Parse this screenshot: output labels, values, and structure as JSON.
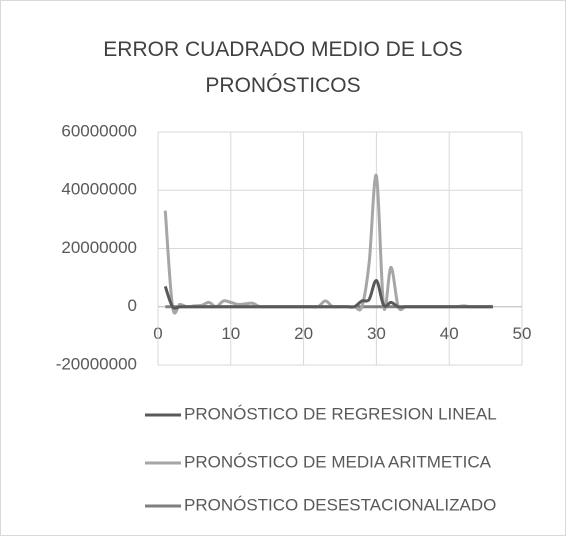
{
  "chart_data": {
    "type": "line",
    "title": "ERROR CUADRADO MEDIO DE LOS PRONÓSTICOS",
    "x": [
      1,
      2,
      3,
      4,
      5,
      6,
      7,
      8,
      9,
      10,
      11,
      12,
      13,
      14,
      15,
      16,
      17,
      18,
      19,
      20,
      21,
      22,
      23,
      24,
      25,
      26,
      27,
      28,
      29,
      30,
      31,
      32,
      33,
      34,
      35,
      36,
      37,
      38,
      39,
      40,
      41,
      42,
      43,
      44,
      45,
      46
    ],
    "series": [
      {
        "name": "PRONÓSTICO DE REGRESION LINEAL",
        "color": "#595959",
        "values": [
          7000000,
          0,
          0,
          0,
          0,
          0,
          0,
          0,
          0,
          0,
          0,
          0,
          0,
          0,
          0,
          0,
          0,
          0,
          0,
          0,
          0,
          0,
          0,
          0,
          0,
          0,
          0,
          2000000,
          2500000,
          9000000,
          500000,
          1500000,
          0,
          0,
          0,
          0,
          0,
          0,
          0,
          0,
          0,
          0,
          0,
          0,
          0,
          0
        ]
      },
      {
        "name": "PRONÓSTICO DE MEDIA ARITMETICA",
        "color": "#a6a6a6",
        "values": [
          33000000,
          0,
          800000,
          0,
          300000,
          500000,
          1500000,
          0,
          2000000,
          1500000,
          800000,
          1000000,
          1200000,
          0,
          0,
          0,
          0,
          0,
          0,
          0,
          0,
          0,
          2000000,
          0,
          0,
          0,
          0,
          0,
          15000000,
          45000000,
          0,
          13500000,
          0,
          0,
          0,
          0,
          0,
          0,
          0,
          0,
          0,
          300000,
          0,
          0,
          0,
          0
        ]
      },
      {
        "name": "PRONÓSTICO DESESTACIONALIZADO",
        "color": "#7f7f7f",
        "values": [
          0,
          0,
          0,
          0,
          0,
          0,
          0,
          0,
          0,
          0,
          0,
          0,
          0,
          0,
          0,
          0,
          0,
          0,
          0,
          0,
          0,
          0,
          0,
          0,
          0,
          0,
          0,
          0,
          0,
          0,
          0,
          0,
          0,
          0,
          0,
          0,
          0,
          0,
          0,
          0,
          0,
          0,
          0,
          0,
          0,
          0
        ]
      }
    ],
    "xlim": [
      0,
      50
    ],
    "xticks": [
      0,
      10,
      20,
      30,
      40,
      50
    ],
    "ylim": [
      -20000000,
      60000000
    ],
    "yticks": [
      -20000000,
      0,
      20000000,
      40000000,
      60000000
    ],
    "grid": true,
    "legend": "bottom"
  }
}
